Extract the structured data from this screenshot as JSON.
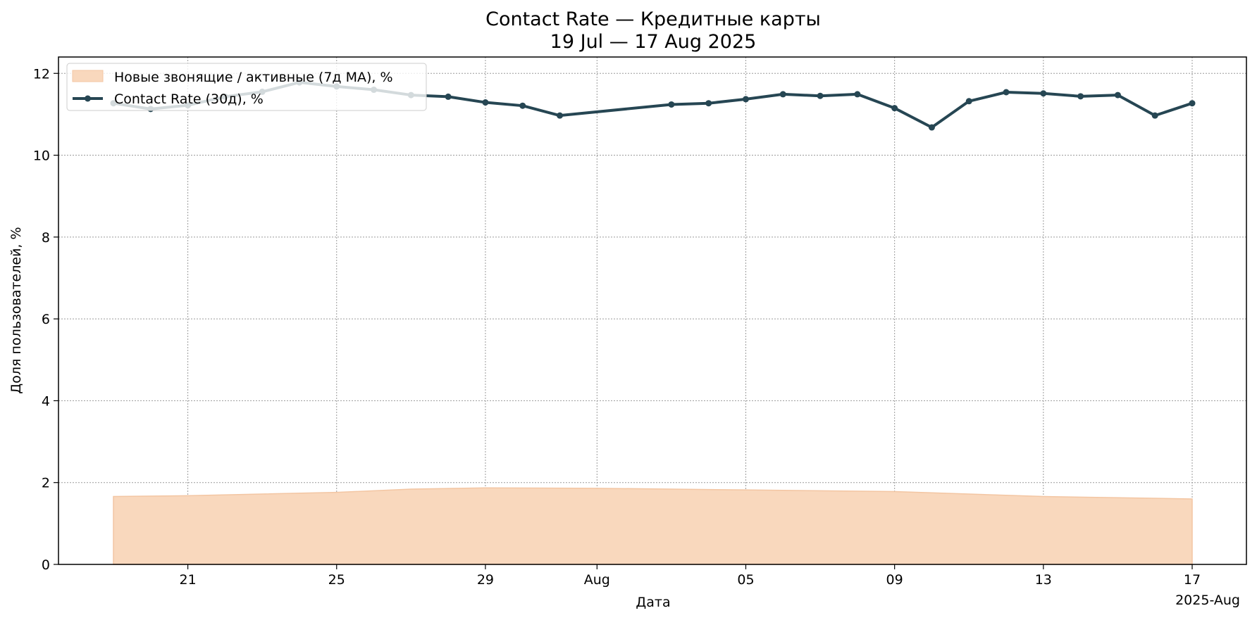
{
  "chart_data": {
    "type": "line",
    "title": "Contact Rate — Кредитные карты",
    "subtitle": "19 Jul — 17 Aug 2025",
    "xlabel": "Дата",
    "ylabel": "Доля пользователей, %",
    "x_offset_label": "2025-Aug",
    "ylim": [
      0,
      12.4
    ],
    "yticks": [
      0,
      2,
      4,
      6,
      8,
      10,
      12
    ],
    "xticks": [
      {
        "date": "2025-07-21",
        "label": "21"
      },
      {
        "date": "2025-07-25",
        "label": "25"
      },
      {
        "date": "2025-07-29",
        "label": "29"
      },
      {
        "date": "2025-08-01",
        "label": "Aug"
      },
      {
        "date": "2025-08-05",
        "label": "05"
      },
      {
        "date": "2025-08-09",
        "label": "09"
      },
      {
        "date": "2025-08-13",
        "label": "13"
      },
      {
        "date": "2025-08-17",
        "label": "17"
      }
    ],
    "grid": true,
    "legend_position": "top-left",
    "series": [
      {
        "name": "Новые звонящие / активные (7д MA), %",
        "kind": "area",
        "color": "#f9d8bd",
        "edge_color": "#f3c6a3",
        "points": [
          {
            "x": "2025-07-19",
            "y": 1.66
          },
          {
            "x": "2025-07-21",
            "y": 1.68
          },
          {
            "x": "2025-07-25",
            "y": 1.76
          },
          {
            "x": "2025-07-27",
            "y": 1.84
          },
          {
            "x": "2025-07-29",
            "y": 1.87
          },
          {
            "x": "2025-08-01",
            "y": 1.86
          },
          {
            "x": "2025-08-05",
            "y": 1.82
          },
          {
            "x": "2025-08-09",
            "y": 1.78
          },
          {
            "x": "2025-08-11",
            "y": 1.72
          },
          {
            "x": "2025-08-13",
            "y": 1.66
          },
          {
            "x": "2025-08-17",
            "y": 1.6
          }
        ]
      },
      {
        "name": "Contact Rate (30д), %",
        "kind": "line",
        "color": "#264653",
        "points": [
          {
            "x": "2025-07-19",
            "y": 11.27
          },
          {
            "x": "2025-07-20",
            "y": 11.13
          },
          {
            "x": "2025-07-21",
            "y": 11.22
          },
          {
            "x": "2025-07-22",
            "y": 11.43
          },
          {
            "x": "2025-07-23",
            "y": 11.55
          },
          {
            "x": "2025-07-24",
            "y": 11.78
          },
          {
            "x": "2025-07-25",
            "y": 11.68
          },
          {
            "x": "2025-07-26",
            "y": 11.6
          },
          {
            "x": "2025-07-27",
            "y": 11.47
          },
          {
            "x": "2025-07-28",
            "y": 11.43
          },
          {
            "x": "2025-07-29",
            "y": 11.29
          },
          {
            "x": "2025-07-30",
            "y": 11.21
          },
          {
            "x": "2025-07-31",
            "y": 10.97
          },
          {
            "x": "2025-08-03",
            "y": 11.24
          },
          {
            "x": "2025-08-04",
            "y": 11.27
          },
          {
            "x": "2025-08-05",
            "y": 11.37
          },
          {
            "x": "2025-08-06",
            "y": 11.49
          },
          {
            "x": "2025-08-07",
            "y": 11.45
          },
          {
            "x": "2025-08-08",
            "y": 11.49
          },
          {
            "x": "2025-08-09",
            "y": 11.15
          },
          {
            "x": "2025-08-10",
            "y": 10.68
          },
          {
            "x": "2025-08-11",
            "y": 11.32
          },
          {
            "x": "2025-08-12",
            "y": 11.54
          },
          {
            "x": "2025-08-13",
            "y": 11.51
          },
          {
            "x": "2025-08-14",
            "y": 11.44
          },
          {
            "x": "2025-08-15",
            "y": 11.47
          },
          {
            "x": "2025-08-16",
            "y": 10.97
          },
          {
            "x": "2025-08-17",
            "y": 11.27
          }
        ]
      }
    ]
  }
}
